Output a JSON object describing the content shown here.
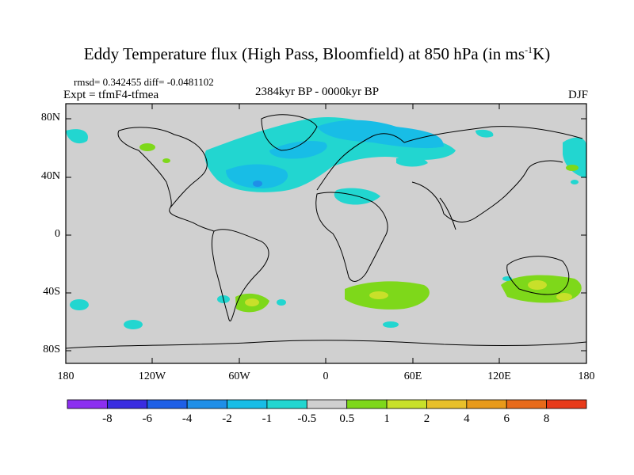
{
  "title": "Eddy Temperature flux (High Pass, Bloomfield) at 850 hPa (in ms",
  "title_sup": "-1",
  "title_end": "K)",
  "stats": "rmsd= 0.342455 diff= -0.0481102",
  "expt": "Expt = tfmF4-tfmea",
  "period": "2384kyr BP - 0000kyr BP",
  "season": "DJF",
  "lat_labels": [
    "80N",
    "40N",
    "0",
    "40S",
    "80S"
  ],
  "lon_labels": [
    "180",
    "120W",
    "60W",
    "0",
    "60E",
    "120E",
    "180"
  ],
  "colorbar": {
    "labels": [
      "-8",
      "-6",
      "-4",
      "-2",
      "-1",
      "-0.5",
      "0.5",
      "1",
      "2",
      "4",
      "6",
      "8"
    ],
    "colors": [
      "#8c2ff0",
      "#3a2ce0",
      "#1e5fe6",
      "#1f8fe8",
      "#18bde6",
      "#22d6d0",
      "#cfcfcf",
      "#7ed81a",
      "#c8e02a",
      "#e8c02a",
      "#e89a1a",
      "#e86a1a",
      "#e83a1a"
    ]
  },
  "colors": {
    "land_ocean": "#d0d0d0",
    "cyan_weak": "#22d6d0",
    "cyan_med": "#18bde6",
    "blue": "#1f8fe8",
    "green": "#7ed81a",
    "yellow_green": "#c8e02a"
  }
}
